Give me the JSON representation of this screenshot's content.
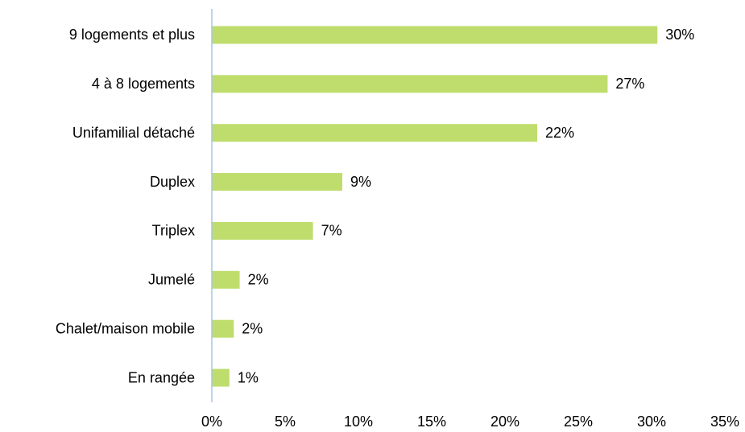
{
  "chart_data": {
    "type": "barh",
    "categories": [
      "9 logements et plus",
      "4 à 8 logements",
      "Unifamilial détaché",
      "Duplex",
      "Triplex",
      "Jumelé",
      "Chalet/maison mobile",
      "En rangée"
    ],
    "values": [
      30.4,
      27,
      22.2,
      8.9,
      6.9,
      1.9,
      1.5,
      1.2
    ],
    "value_labels": [
      "30%",
      "27%",
      "22%",
      "9%",
      "7%",
      "2%",
      "2%",
      "1%"
    ],
    "color": "#bedd6c",
    "xlim": [
      0,
      35
    ],
    "xticks": [
      {
        "value": 0,
        "label": "0%"
      },
      {
        "value": 5,
        "label": "5%"
      },
      {
        "value": 10,
        "label": "10%"
      },
      {
        "value": 15,
        "label": "15%"
      },
      {
        "value": 20,
        "label": "20%"
      },
      {
        "value": 25,
        "label": "25%"
      },
      {
        "value": 30,
        "label": "30%"
      },
      {
        "value": 35,
        "label": "35%"
      }
    ],
    "grid": false
  }
}
